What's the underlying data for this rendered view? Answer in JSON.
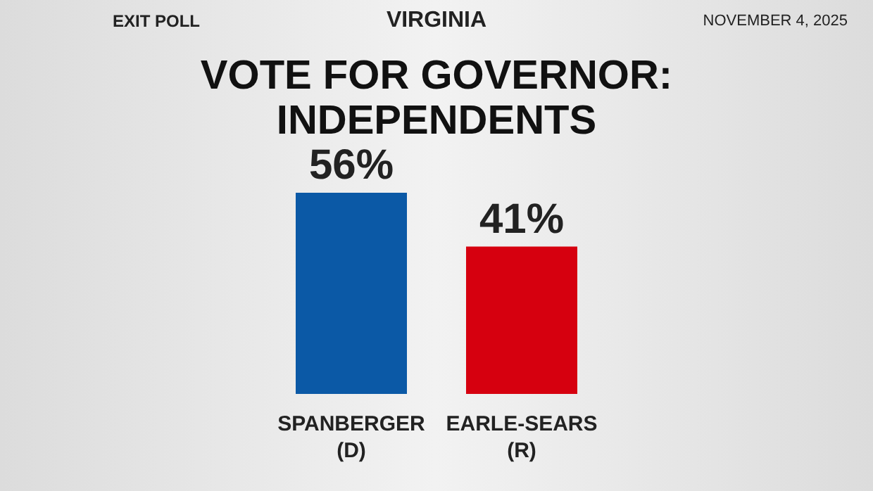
{
  "chart_data": {
    "type": "bar",
    "title": "VOTE FOR GOVERNOR: INDEPENDENTS",
    "subtitle": "VIRGINIA",
    "annotations": [
      "EXIT POLL",
      "NOVEMBER 4, 2025"
    ],
    "categories": [
      "SPANBERGER (D)",
      "EARLE-SEARS (R)"
    ],
    "values": [
      56,
      41
    ],
    "colors": [
      "#0b59a6",
      "#d6000f"
    ],
    "value_labels": [
      "56%",
      "41%"
    ],
    "grid": false,
    "legend": false
  }
}
